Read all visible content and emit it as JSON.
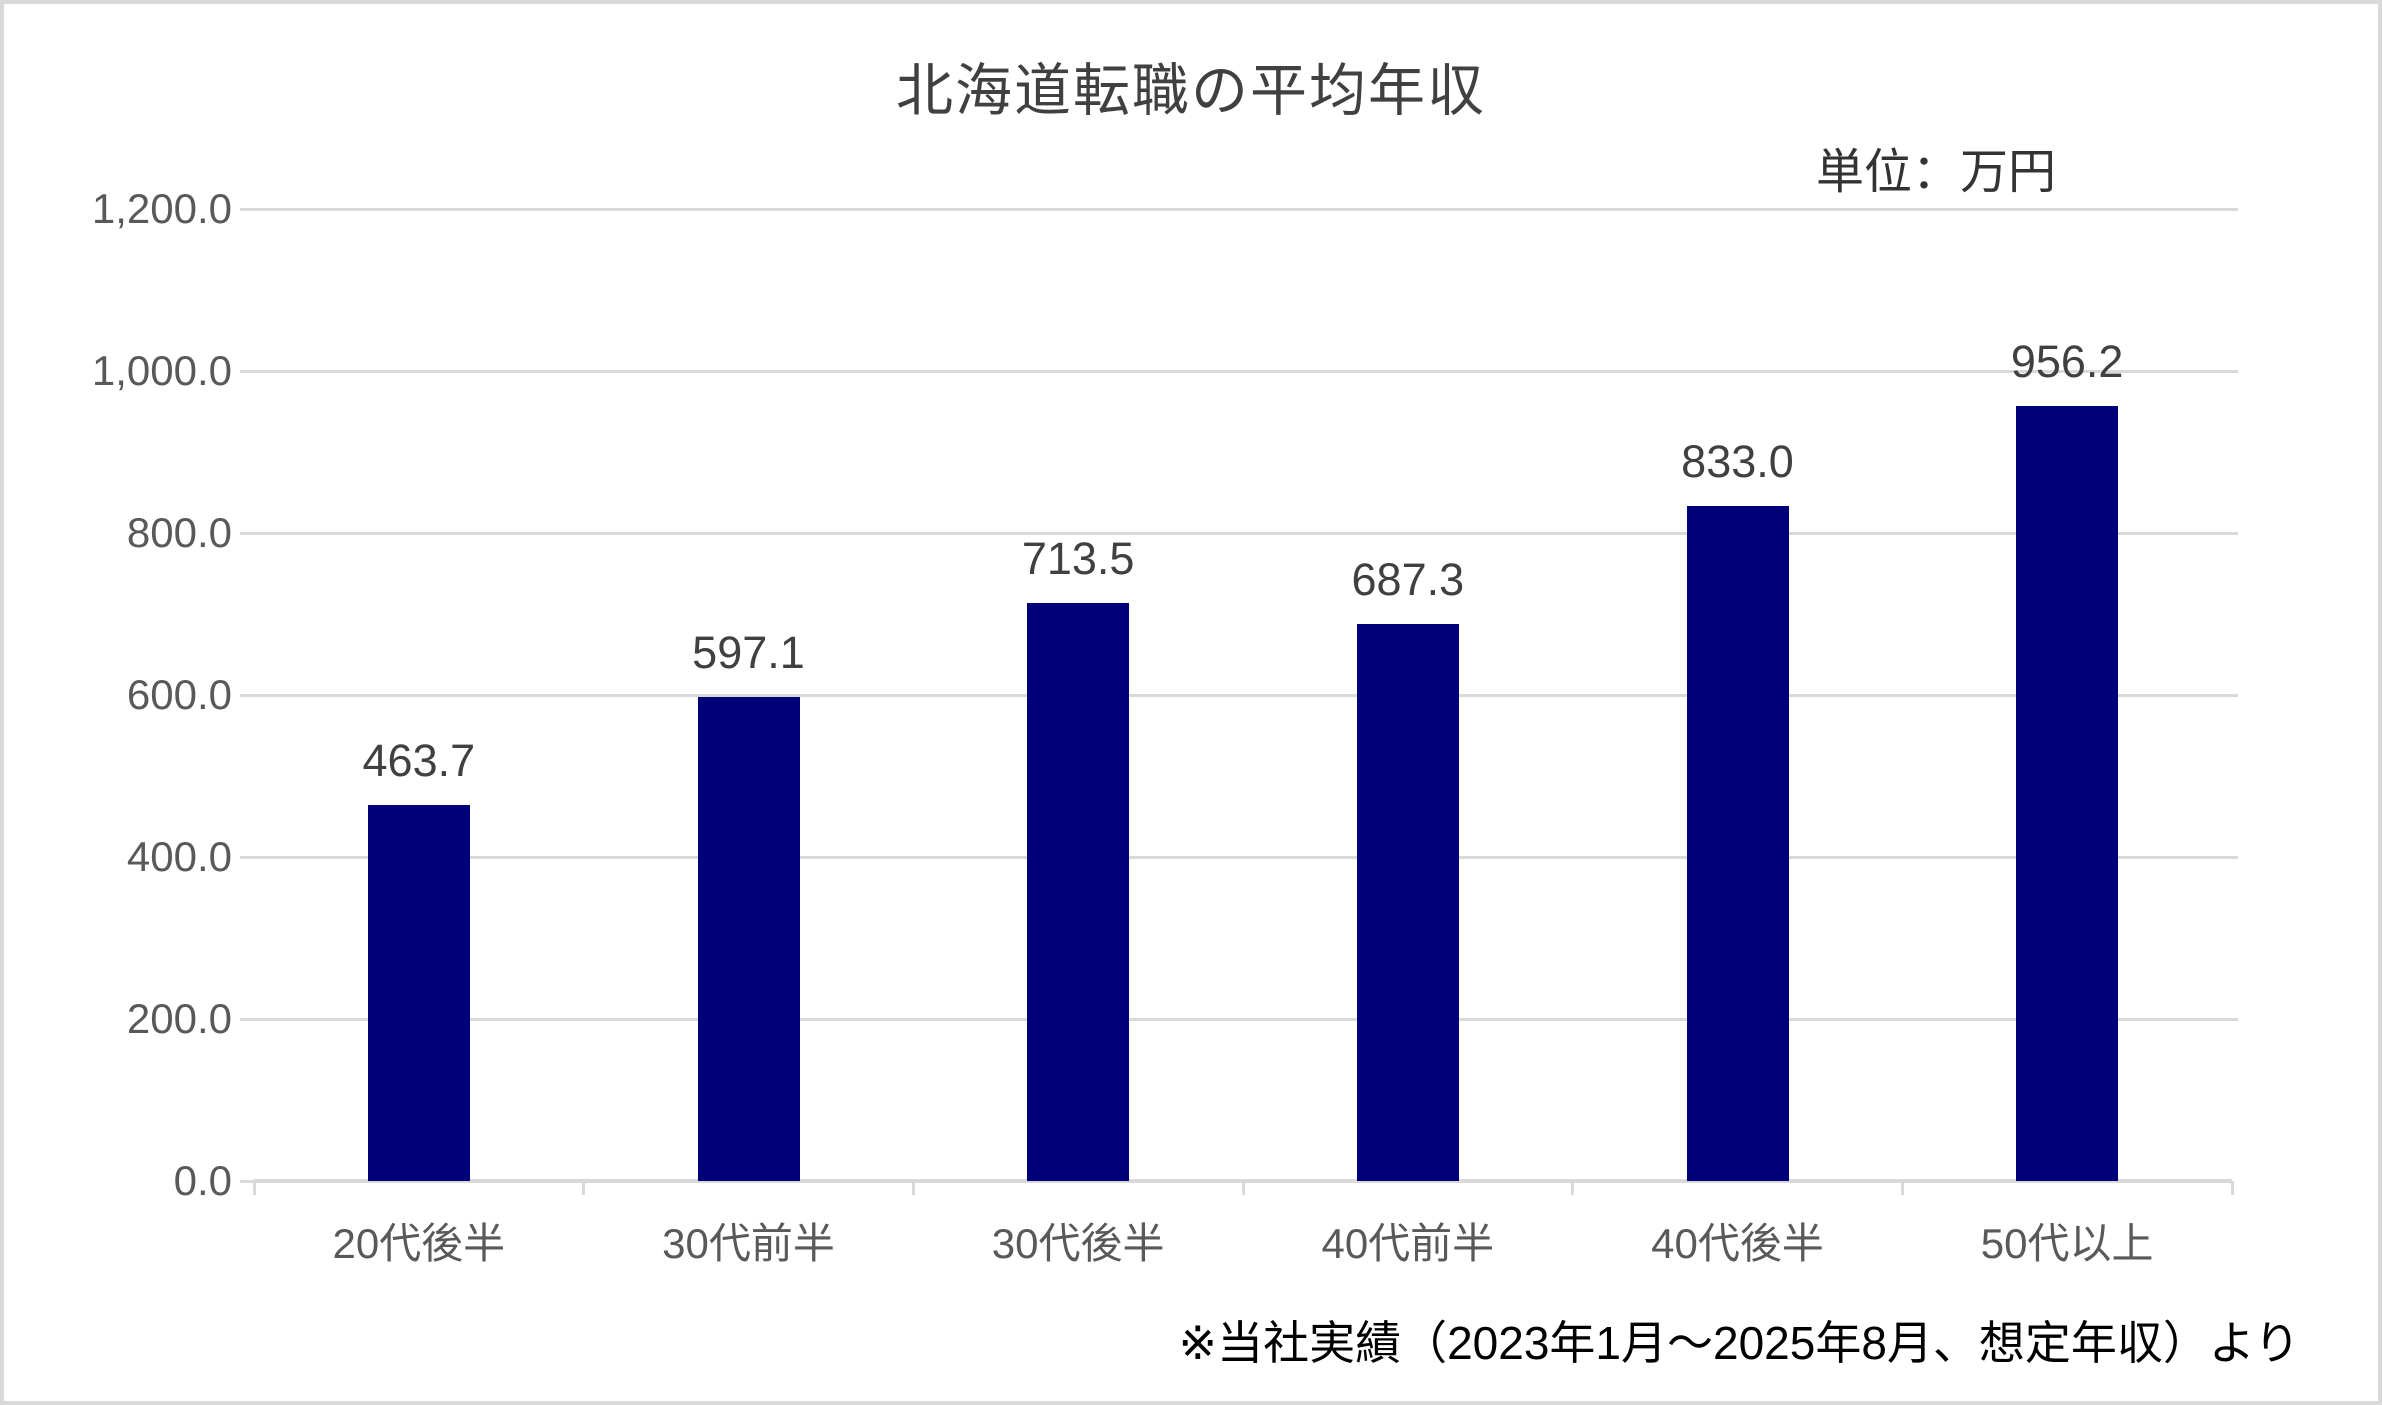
{
  "chart_data": {
    "type": "bar",
    "title": "北海道転職の平均年収",
    "unit_label": "単位：万円",
    "categories": [
      "20代後半",
      "30代前半",
      "30代後半",
      "40代前半",
      "40代後半",
      "50代以上"
    ],
    "values": [
      463.7,
      597.1,
      713.5,
      687.3,
      833.0,
      956.2
    ],
    "data_labels": [
      "463.7",
      "597.1",
      "713.5",
      "687.3",
      "833.0",
      "956.2"
    ],
    "y_tick_values": [
      0,
      200,
      400,
      600,
      800,
      1000,
      1200
    ],
    "y_tick_labels": [
      "0.0",
      "200.0",
      "400.0",
      "600.0",
      "800.0",
      "1,000.0",
      "1,200.0"
    ],
    "ylim": [
      0,
      1200
    ],
    "xlabel": "",
    "ylabel": "",
    "grid": true,
    "legend_position": "none",
    "footnote": "※当社実績（2023年1月～2025年8月、想定年収）より",
    "colors": {
      "bar": "#000078",
      "gridline": "#d9d9d9",
      "axis": "#d9d9d9",
      "tick_label": "#595959",
      "data_label": "#404040",
      "title": "#404040",
      "unit_label": "#333333",
      "footnote": "#000000"
    }
  }
}
